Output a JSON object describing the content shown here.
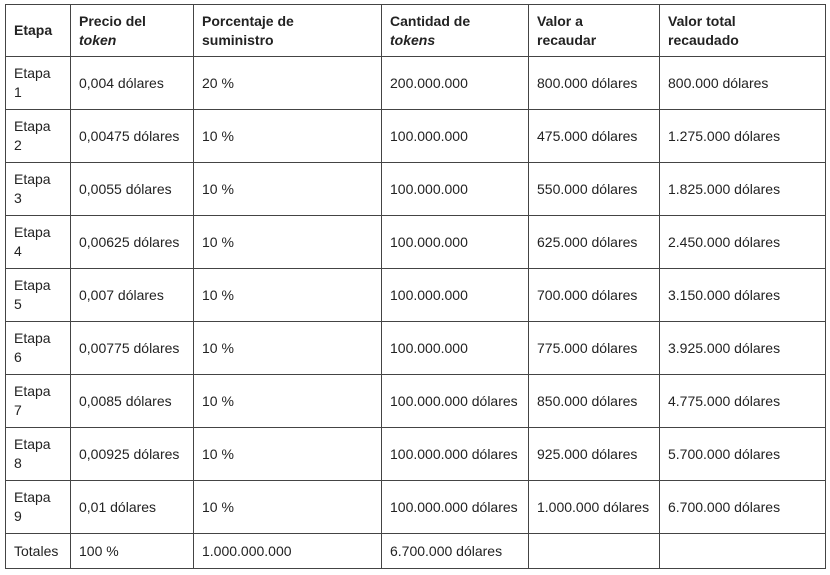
{
  "table": {
    "headers": [
      {
        "line1": "Etapa",
        "line2": ""
      },
      {
        "line1": "Precio del",
        "line2": "token"
      },
      {
        "line1": "Porcentaje de",
        "line2": "suministro"
      },
      {
        "line1": "Cantidad de",
        "line2": "tokens"
      },
      {
        "line1": "Valor a",
        "line2": "recaudar"
      },
      {
        "line1": "Valor total",
        "line2": "recaudado"
      }
    ],
    "rows": [
      {
        "etapa": "Etapa",
        "num": "1",
        "precio": "0,004 dólares",
        "porcentaje": "20 %",
        "cantidad": "200.000.000",
        "valor": "800.000 dólares",
        "total": "800.000 dólares"
      },
      {
        "etapa": "Etapa",
        "num": "2",
        "precio": "0,00475 dólares",
        "porcentaje": "10 %",
        "cantidad": "100.000.000",
        "valor": "475.000 dólares",
        "total": "1.275.000 dólares"
      },
      {
        "etapa": "Etapa",
        "num": "3",
        "precio": "0,0055 dólares",
        "porcentaje": "10 %",
        "cantidad": "100.000.000",
        "valor": "550.000 dólares",
        "total": "1.825.000 dólares"
      },
      {
        "etapa": "Etapa",
        "num": "4",
        "precio": "0,00625 dólares",
        "porcentaje": "10 %",
        "cantidad": "100.000.000",
        "valor": "625.000 dólares",
        "total": "2.450.000 dólares"
      },
      {
        "etapa": "Etapa",
        "num": "5",
        "precio": "0,007 dólares",
        "porcentaje": "10 %",
        "cantidad": "100.000.000",
        "valor": "700.000 dólares",
        "total": "3.150.000 dólares"
      },
      {
        "etapa": "Etapa",
        "num": "6",
        "precio": "0,00775 dólares",
        "porcentaje": "10 %",
        "cantidad": "100.000.000",
        "valor": "775.000 dólares",
        "total": "3.925.000 dólares"
      },
      {
        "etapa": "Etapa",
        "num": "7",
        "precio": "0,0085 dólares",
        "porcentaje": "10 %",
        "cantidad": "100.000.000 dólares",
        "valor": "850.000 dólares",
        "total": "4.775.000 dólares"
      },
      {
        "etapa": "Etapa",
        "num": "8",
        "precio": "0,00925 dólares",
        "porcentaje": "10 %",
        "cantidad": "100.000.000 dólares",
        "valor": "925.000 dólares",
        "total": "5.700.000 dólares"
      },
      {
        "etapa": "Etapa",
        "num": "9",
        "precio": "0,01 dólares",
        "porcentaje": "10 %",
        "cantidad": "100.000.000 dólares",
        "valor": "1.000.000 dólares",
        "total": "6.700.000 dólares"
      }
    ],
    "totals": {
      "label": "Totales",
      "precio": "100 %",
      "porcentaje": "1.000.000.000",
      "cantidad": "6.700.000 dólares",
      "valor": "",
      "total": ""
    }
  }
}
